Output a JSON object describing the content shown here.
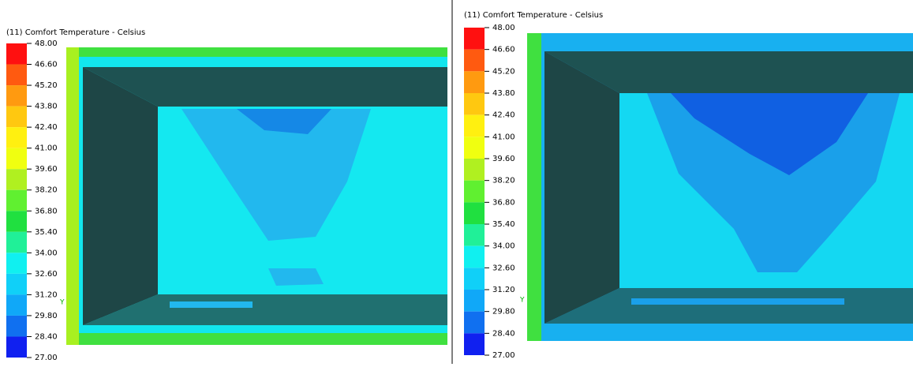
{
  "panels": [
    {
      "title": "(11) Comfort Temperature - Celsius",
      "legend_labels": [
        "48.00",
        "46.60",
        "45.20",
        "43.80",
        "42.40",
        "41.00",
        "39.60",
        "38.20",
        "36.80",
        "35.40",
        "34.00",
        "32.60",
        "31.20",
        "29.80",
        "28.40",
        "27.00"
      ],
      "axis_marker": "Y"
    },
    {
      "title": "(11) Comfort Temperature - Celsius",
      "legend_labels": [
        "48.00",
        "46.60",
        "45.20",
        "43.80",
        "42.40",
        "41.00",
        "39.60",
        "38.20",
        "36.80",
        "35.40",
        "34.00",
        "32.60",
        "31.20",
        "29.80",
        "28.40",
        "27.00"
      ],
      "axis_marker": "Y"
    }
  ],
  "legend_colors": [
    "#ff1010",
    "#ff5a10",
    "#ff9a10",
    "#ffc810",
    "#fff010",
    "#f0ff10",
    "#b0f020",
    "#60f030",
    "#20e040",
    "#20f098",
    "#10f0f0",
    "#10d0f8",
    "#10a8f8",
    "#1070f0",
    "#1020f0"
  ]
}
